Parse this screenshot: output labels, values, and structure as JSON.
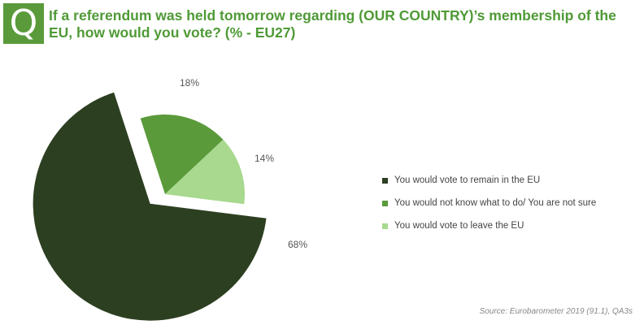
{
  "header": {
    "badge": "Q",
    "title": "If a referendum was held tomorrow regarding (OUR COUNTRY)’s membership of the EU, how would you vote? (% - EU27)"
  },
  "chart_data": {
    "type": "pie",
    "title": "If a referendum was held tomorrow regarding (OUR COUNTRY)’s membership of the EU, how would you vote? (% - EU27)",
    "slices": [
      {
        "label": "You would vote to remain in the EU",
        "value": 68,
        "display": "68%",
        "color": "#2d3f21",
        "exploded": true
      },
      {
        "label": "You would not know what to do/ You are not sure",
        "value": 18,
        "display": "18%",
        "color": "#5a9a3a",
        "exploded": false
      },
      {
        "label": "You would vote to leave the EU",
        "value": 14,
        "display": "14%",
        "color": "#a8d98e",
        "exploded": false
      }
    ],
    "legend_position": "right",
    "start_angle_deg": 0
  },
  "source": "Source: Eurobarometer 2019 (91.1), QA3s"
}
